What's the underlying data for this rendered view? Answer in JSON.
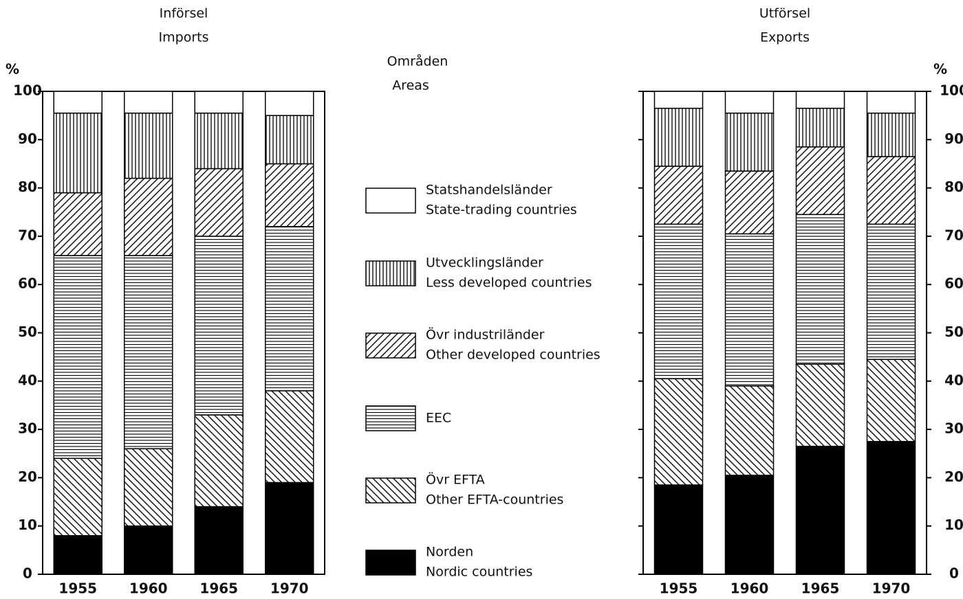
{
  "legend": {
    "title": "Områden",
    "subtitle": "Areas"
  },
  "chart_data": [
    {
      "type": "bar",
      "stacked": true,
      "title": "Införsel",
      "subtitle": "Imports",
      "ylabel": "%",
      "yaxis_side": "left",
      "categories": [
        "1955",
        "1960",
        "1965",
        "1970"
      ],
      "ylim": [
        0,
        100
      ],
      "yticks": [
        0,
        10,
        20,
        30,
        40,
        50,
        60,
        70,
        80,
        90,
        100
      ],
      "grid": false,
      "series": [
        {
          "name": "Norden",
          "name_en": "Nordic countries",
          "pattern": "solid",
          "color": "#000000",
          "values": [
            8,
            10,
            14,
            19
          ]
        },
        {
          "name": "Övr EFTA",
          "name_en": "Other EFTA-countries",
          "pattern": "backdiag",
          "color": "#000000",
          "values": [
            16,
            16,
            19,
            19
          ]
        },
        {
          "name": "EEC",
          "pattern": "horizontal",
          "color": "#000000",
          "values": [
            42,
            40,
            37,
            34
          ]
        },
        {
          "name": "Övr industriländer",
          "name_en": "Other developed countries",
          "pattern": "diag",
          "color": "#000000",
          "values": [
            13,
            16,
            14,
            13
          ]
        },
        {
          "name": "Utvecklingsländer",
          "name_en": "Less developed countries",
          "pattern": "vertical",
          "color": "#000000",
          "values": [
            16.5,
            13.5,
            11.5,
            10
          ]
        },
        {
          "name": "Statshandelsländer",
          "name_en": "State-trading countries",
          "pattern": "blank",
          "color": "#000000",
          "values": [
            4.5,
            4.5,
            4.5,
            5
          ]
        }
      ]
    },
    {
      "type": "bar",
      "stacked": true,
      "title": "Utförsel",
      "subtitle": "Exports",
      "ylabel": "%",
      "yaxis_side": "right",
      "categories": [
        "1955",
        "1960",
        "1965",
        "1970"
      ],
      "ylim": [
        0,
        100
      ],
      "yticks": [
        0,
        10,
        20,
        30,
        40,
        50,
        60,
        70,
        80,
        90,
        100
      ],
      "grid": false,
      "series": [
        {
          "pattern": "solid",
          "color": "#000000",
          "values": [
            18.5,
            20.5,
            26.5,
            27.5
          ]
        },
        {
          "pattern": "backdiag",
          "color": "#000000",
          "values": [
            22,
            18.5,
            17,
            17
          ]
        },
        {
          "pattern": "horizontal",
          "color": "#000000",
          "values": [
            32,
            31.5,
            31,
            28
          ]
        },
        {
          "pattern": "diag",
          "color": "#000000",
          "values": [
            12,
            13,
            14,
            14
          ]
        },
        {
          "pattern": "vertical",
          "color": "#000000",
          "values": [
            12,
            12,
            8,
            9
          ]
        },
        {
          "pattern": "blank",
          "color": "#000000",
          "values": [
            3.5,
            4.5,
            3.5,
            4.5
          ]
        }
      ]
    }
  ]
}
